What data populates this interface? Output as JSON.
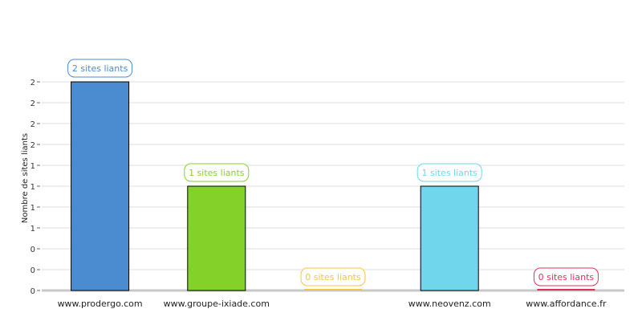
{
  "chart_data": {
    "type": "bar",
    "ylabel": "Nombre de sites liants",
    "xlabel": "",
    "title": "",
    "ylim": [
      0,
      2
    ],
    "y_tick_labels": [
      "0",
      "0",
      "0",
      "1",
      "1",
      "1",
      "1",
      "2",
      "2",
      "2",
      "2"
    ],
    "categories": [
      "www.prodergo.com",
      "www.groupe-ixiade.com",
      "",
      "www.neovenz.com",
      "www.affordance.fr"
    ],
    "values": [
      2,
      1,
      0,
      1,
      0
    ],
    "data_labels": [
      "2 sites liants",
      "1 sites liants",
      "0 sites liants",
      "1 sites liants",
      "0 sites liants"
    ],
    "colors": [
      "#4a8ccf",
      "#84d12a",
      "#f4c542",
      "#70d6ec",
      "#e0305a"
    ],
    "grid": true,
    "legend": "none"
  }
}
